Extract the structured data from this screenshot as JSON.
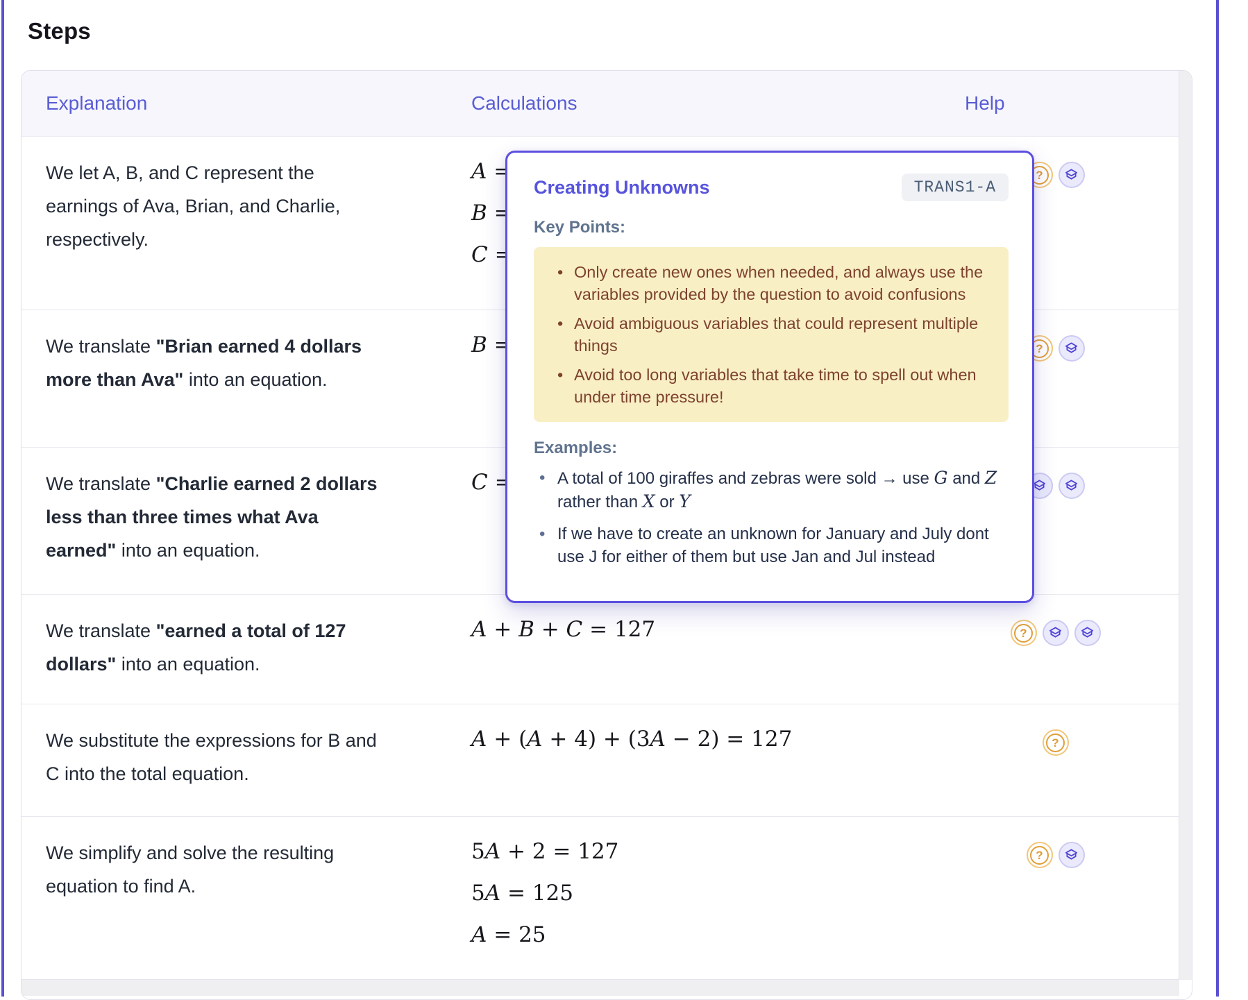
{
  "page": {
    "title": "Steps"
  },
  "table": {
    "columns": [
      "Explanation",
      "Calculations",
      "Help"
    ],
    "rows": [
      {
        "explanation": [
          {
            "t": "We let A, B, and C represent the earnings of Ava, Brian, and Charlie, respectively."
          }
        ],
        "calculations": [
          "A =",
          "B =",
          "C ="
        ],
        "icons": [
          "question",
          "cap"
        ]
      },
      {
        "explanation": [
          {
            "t": "We translate "
          },
          {
            "t": "\"Brian earned 4 dollars more than Ava\"",
            "bold": true
          },
          {
            "t": " into an equation."
          }
        ],
        "calculations": [
          "B ="
        ],
        "icons": [
          "question",
          "cap"
        ]
      },
      {
        "explanation": [
          {
            "t": "We translate "
          },
          {
            "t": "\"Charlie earned 2 dollars less than three times what Ava earned\"",
            "bold": true
          },
          {
            "t": " into an equation."
          }
        ],
        "calculations": [
          "C ="
        ],
        "icons": [
          "cap",
          "cap"
        ]
      },
      {
        "explanation": [
          {
            "t": "We translate "
          },
          {
            "t": "\"earned a total of 127 dollars\"",
            "bold": true
          },
          {
            "t": " into an equation."
          }
        ],
        "calculations": [
          "A + B + C = 127"
        ],
        "icons": [
          "question",
          "cap",
          "cap"
        ]
      },
      {
        "explanation": [
          {
            "t": "We substitute the expressions for B and C into the total equation."
          }
        ],
        "calculations": [
          "A + (A + 4) + (3A − 2) = 127"
        ],
        "icons": [
          "question"
        ]
      },
      {
        "explanation": [
          {
            "t": "We simplify and solve the resulting equation to find A."
          }
        ],
        "calculations": [
          "5A + 2 = 127",
          "5A = 125",
          "A = 25"
        ],
        "icons": [
          "question",
          "cap"
        ]
      }
    ]
  },
  "popover": {
    "title": "Creating Unknowns",
    "tag": "TRANS1-A",
    "key_points_label": "Key Points:",
    "key_points": [
      "Only create new ones when needed, and always use the variables provided by the question to avoid confusions",
      "Avoid ambiguous variables that could represent multiple things",
      "Avoid too long variables that take time to spell out when under time pressure!"
    ],
    "examples_label": "Examples:",
    "examples": [
      [
        {
          "t": "A total of 100 giraffes and zebras were sold → use "
        },
        {
          "t": "G",
          "math": true
        },
        {
          "t": " and "
        },
        {
          "t": "Z",
          "math": true
        },
        {
          "t": " rather than "
        },
        {
          "t": "X",
          "math": true
        },
        {
          "t": " or "
        },
        {
          "t": "Y",
          "math": true
        }
      ],
      [
        {
          "t": "If we have to create an unknown for January and July dont use J for either of them but use Jan and Jul instead"
        }
      ]
    ],
    "colors": {
      "accent_indigo": "#5c4fe0",
      "header_indigo": "#595dd4",
      "keypoint_bg": "#f9efc5",
      "keypoint_text": "#7d422e",
      "section_label": "#60748f",
      "question_orange": "#e09f38"
    }
  }
}
